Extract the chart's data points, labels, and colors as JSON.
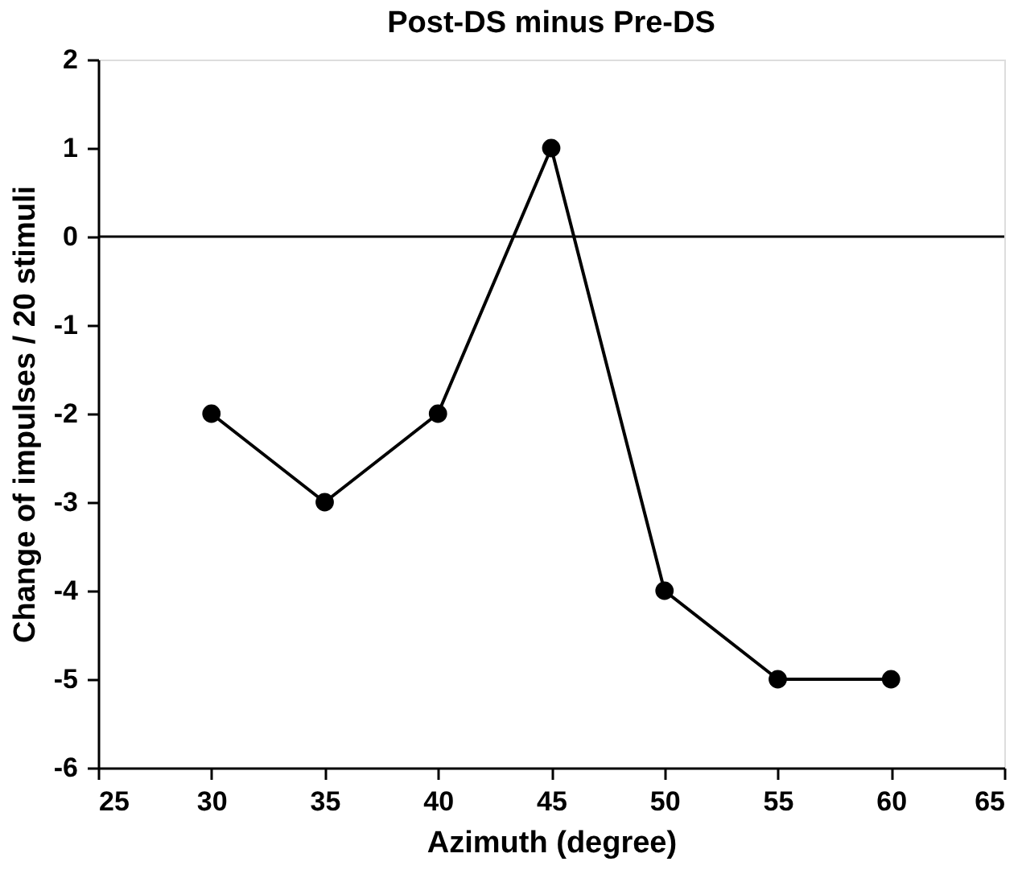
{
  "chart_data": {
    "type": "line",
    "title": "Post-DS minus Pre-DS",
    "xlabel": "Azimuth (degree)",
    "ylabel": "Change of impulses / 20 stimuli",
    "x": [
      30,
      35,
      40,
      45,
      50,
      55,
      60
    ],
    "series": [
      {
        "color": "#000000",
        "values": [
          -2,
          -3,
          -2,
          1,
          -4,
          -5,
          -5
        ]
      }
    ],
    "xlim": [
      25,
      65
    ],
    "xticks": [
      25,
      30,
      35,
      40,
      45,
      50,
      55,
      60,
      65
    ],
    "ylim": [
      -6,
      2
    ],
    "yticks": [
      -6,
      -5,
      -4,
      -3,
      -2,
      -1,
      0,
      1,
      2
    ],
    "ref_lines": [
      {
        "axis": "y",
        "value": 0,
        "color": "#000000"
      }
    ],
    "grid": false,
    "marker": "circle",
    "line_style": "solid"
  }
}
